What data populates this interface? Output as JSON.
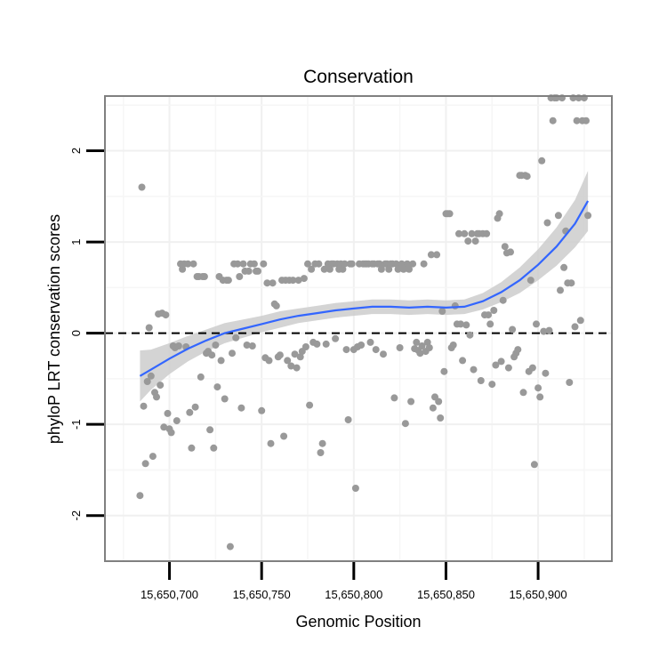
{
  "chart_data": {
    "type": "scatter",
    "title": "Conservation",
    "xlabel": "Genomic Position",
    "ylabel": "phyloP LRT conservation scores",
    "xlim": [
      15650665,
      15650940
    ],
    "ylim": [
      -2.5,
      2.6
    ],
    "xticks": [
      15650700,
      15650750,
      15650800,
      15650850,
      15650900
    ],
    "xtick_labels": [
      "15,650,700",
      "15,650,750",
      "15,650,800",
      "15,650,850",
      "15,650,900"
    ],
    "yticks": [
      -2,
      -1,
      0,
      1,
      2
    ],
    "ytick_labels": [
      "-2",
      "-1",
      "0",
      "1",
      "2"
    ],
    "reference_line": {
      "y": 0,
      "style": "dashed",
      "color": "#000000"
    },
    "point_color": "#999999",
    "smooth_color": "#3366ff",
    "band_color": "#cccccc",
    "points": [
      [
        15650684,
        -1.78
      ],
      [
        15650685,
        1.6
      ],
      [
        15650686,
        -0.8
      ],
      [
        15650687,
        -1.43
      ],
      [
        15650688,
        -0.53
      ],
      [
        15650689,
        0.06
      ],
      [
        15650690,
        -0.47
      ],
      [
        15650691,
        -1.35
      ],
      [
        15650692,
        -0.65
      ],
      [
        15650693,
        -0.7
      ],
      [
        15650694,
        0.21
      ],
      [
        15650695,
        -0.57
      ],
      [
        15650696,
        0.22
      ],
      [
        15650697,
        -1.03
      ],
      [
        15650698,
        0.2
      ],
      [
        15650699,
        -0.88
      ],
      [
        15650700,
        -1.05
      ],
      [
        15650701,
        -1.09
      ],
      [
        15650702,
        -0.14
      ],
      [
        15650703,
        -0.16
      ],
      [
        15650704,
        -0.96
      ],
      [
        15650705,
        -0.14
      ],
      [
        15650706,
        0.76
      ],
      [
        15650707,
        0.7
      ],
      [
        15650708,
        0.76
      ],
      [
        15650709,
        -0.15
      ],
      [
        15650710,
        0.76
      ],
      [
        15650711,
        -0.87
      ],
      [
        15650712,
        -1.26
      ],
      [
        15650713,
        0.76
      ],
      [
        15650714,
        -0.81
      ],
      [
        15650715,
        0.62
      ],
      [
        15650716,
        0.62
      ],
      [
        15650717,
        -0.48
      ],
      [
        15650718,
        0.62
      ],
      [
        15650719,
        0.62
      ],
      [
        15650720,
        -0.22
      ],
      [
        15650721,
        -0.2
      ],
      [
        15650722,
        -1.06
      ],
      [
        15650723,
        -0.24
      ],
      [
        15650724,
        -1.26
      ],
      [
        15650725,
        -0.13
      ],
      [
        15650726,
        -0.59
      ],
      [
        15650727,
        0.62
      ],
      [
        15650728,
        -0.3
      ],
      [
        15650729,
        0.58
      ],
      [
        15650730,
        -0.72
      ],
      [
        15650731,
        0.58
      ],
      [
        15650732,
        0.58
      ],
      [
        15650733,
        -2.34
      ],
      [
        15650734,
        -0.22
      ],
      [
        15650735,
        0.76
      ],
      [
        15650736,
        -0.05
      ],
      [
        15650737,
        0.76
      ],
      [
        15650738,
        0.62
      ],
      [
        15650739,
        -0.82
      ],
      [
        15650740,
        0.76
      ],
      [
        15650741,
        0.68
      ],
      [
        15650742,
        -0.13
      ],
      [
        15650743,
        0.68
      ],
      [
        15650744,
        0.76
      ],
      [
        15650745,
        -0.14
      ],
      [
        15650746,
        0.76
      ],
      [
        15650747,
        0.68
      ],
      [
        15650748,
        0.68
      ],
      [
        15650750,
        -0.85
      ],
      [
        15650751,
        0.76
      ],
      [
        15650752,
        -0.27
      ],
      [
        15650753,
        0.55
      ],
      [
        15650754,
        -0.3
      ],
      [
        15650755,
        -1.21
      ],
      [
        15650756,
        0.55
      ],
      [
        15650757,
        0.32
      ],
      [
        15650758,
        0.3
      ],
      [
        15650759,
        -0.26
      ],
      [
        15650760,
        -0.24
      ],
      [
        15650761,
        0.58
      ],
      [
        15650762,
        -1.13
      ],
      [
        15650763,
        0.58
      ],
      [
        15650764,
        -0.3
      ],
      [
        15650765,
        0.58
      ],
      [
        15650766,
        -0.36
      ],
      [
        15650767,
        0.58
      ],
      [
        15650768,
        -0.23
      ],
      [
        15650769,
        -0.38
      ],
      [
        15650770,
        0.58
      ],
      [
        15650771,
        -0.26
      ],
      [
        15650772,
        -0.2
      ],
      [
        15650773,
        0.6
      ],
      [
        15650774,
        -0.15
      ],
      [
        15650775,
        0.76
      ],
      [
        15650776,
        -0.79
      ],
      [
        15650777,
        0.7
      ],
      [
        15650778,
        -0.1
      ],
      [
        15650779,
        0.76
      ],
      [
        15650780,
        -0.12
      ],
      [
        15650781,
        0.76
      ],
      [
        15650782,
        -1.31
      ],
      [
        15650783,
        -1.21
      ],
      [
        15650784,
        0.7
      ],
      [
        15650785,
        -0.12
      ],
      [
        15650786,
        0.76
      ],
      [
        15650787,
        0.7
      ],
      [
        15650788,
        0.76
      ],
      [
        15650789,
        0.76
      ],
      [
        15650790,
        -0.06
      ],
      [
        15650791,
        0.76
      ],
      [
        15650792,
        0.7
      ],
      [
        15650793,
        0.76
      ],
      [
        15650794,
        0.7
      ],
      [
        15650795,
        0.76
      ],
      [
        15650796,
        -0.18
      ],
      [
        15650797,
        -0.95
      ],
      [
        15650798,
        0.76
      ],
      [
        15650799,
        0.76
      ],
      [
        15650800,
        -0.18
      ],
      [
        15650801,
        -1.7
      ],
      [
        15650802,
        -0.15
      ],
      [
        15650803,
        0.76
      ],
      [
        15650804,
        -0.13
      ],
      [
        15650805,
        0.76
      ],
      [
        15650806,
        0.76
      ],
      [
        15650807,
        0.76
      ],
      [
        15650808,
        0.76
      ],
      [
        15650809,
        -0.1
      ],
      [
        15650810,
        0.76
      ],
      [
        15650811,
        0.76
      ],
      [
        15650812,
        -0.18
      ],
      [
        15650813,
        0.76
      ],
      [
        15650814,
        0.76
      ],
      [
        15650815,
        0.7
      ],
      [
        15650816,
        -0.23
      ],
      [
        15650817,
        0.76
      ],
      [
        15650818,
        0.76
      ],
      [
        15650819,
        0.7
      ],
      [
        15650820,
        0.76
      ],
      [
        15650821,
        0.76
      ],
      [
        15650822,
        -0.71
      ],
      [
        15650823,
        0.76
      ],
      [
        15650824,
        0.7
      ],
      [
        15650825,
        -0.16
      ],
      [
        15650826,
        0.76
      ],
      [
        15650827,
        0.7
      ],
      [
        15650828,
        -0.99
      ],
      [
        15650829,
        0.76
      ],
      [
        15650830,
        0.7
      ],
      [
        15650831,
        -0.75
      ],
      [
        15650832,
        0.76
      ],
      [
        15650833,
        -0.17
      ],
      [
        15650834,
        -0.1
      ],
      [
        15650835,
        -0.19
      ],
      [
        15650836,
        -0.22
      ],
      [
        15650837,
        -0.14
      ],
      [
        15650838,
        0.76
      ],
      [
        15650839,
        -0.2
      ],
      [
        15650840,
        -0.1
      ],
      [
        15650841,
        -0.16
      ],
      [
        15650842,
        0.86
      ],
      [
        15650843,
        -0.82
      ],
      [
        15650844,
        -0.7
      ],
      [
        15650845,
        0.86
      ],
      [
        15650846,
        -0.75
      ],
      [
        15650847,
        -0.93
      ],
      [
        15650848,
        0.24
      ],
      [
        15650849,
        -0.42
      ],
      [
        15650850,
        1.31
      ],
      [
        15650851,
        1.31
      ],
      [
        15650852,
        1.31
      ],
      [
        15650853,
        -0.16
      ],
      [
        15650854,
        -0.13
      ],
      [
        15650855,
        0.3
      ],
      [
        15650856,
        0.1
      ],
      [
        15650857,
        1.09
      ],
      [
        15650858,
        0.1
      ],
      [
        15650859,
        -0.3
      ],
      [
        15650860,
        1.09
      ],
      [
        15650861,
        0.09
      ],
      [
        15650862,
        1.01
      ],
      [
        15650863,
        -0.02
      ],
      [
        15650864,
        1.09
      ],
      [
        15650865,
        -0.4
      ],
      [
        15650866,
        1.01
      ],
      [
        15650867,
        1.09
      ],
      [
        15650868,
        1.09
      ],
      [
        15650869,
        -0.52
      ],
      [
        15650870,
        1.09
      ],
      [
        15650871,
        0.2
      ],
      [
        15650872,
        1.09
      ],
      [
        15650873,
        0.2
      ],
      [
        15650874,
        0.1
      ],
      [
        15650875,
        -0.56
      ],
      [
        15650876,
        0.25
      ],
      [
        15650877,
        -0.35
      ],
      [
        15650878,
        1.26
      ],
      [
        15650879,
        1.31
      ],
      [
        15650880,
        -0.31
      ],
      [
        15650881,
        0.36
      ],
      [
        15650882,
        0.95
      ],
      [
        15650883,
        0.88
      ],
      [
        15650884,
        -0.38
      ],
      [
        15650885,
        0.89
      ],
      [
        15650886,
        0.04
      ],
      [
        15650887,
        -0.26
      ],
      [
        15650888,
        -0.22
      ],
      [
        15650889,
        -0.18
      ],
      [
        15650890,
        1.73
      ],
      [
        15650891,
        1.73
      ],
      [
        15650892,
        -0.65
      ],
      [
        15650893,
        1.73
      ],
      [
        15650894,
        1.72
      ],
      [
        15650895,
        -0.42
      ],
      [
        15650896,
        0.58
      ],
      [
        15650897,
        -0.38
      ],
      [
        15650898,
        -1.44
      ],
      [
        15650899,
        0.1
      ],
      [
        15650900,
        -0.6
      ],
      [
        15650901,
        -0.7
      ],
      [
        15650902,
        1.89
      ],
      [
        15650903,
        0.02
      ],
      [
        15650904,
        -0.44
      ],
      [
        15650905,
        1.21
      ],
      [
        15650906,
        0.03
      ],
      [
        15650907,
        2.58
      ],
      [
        15650908,
        2.33
      ],
      [
        15650909,
        2.58
      ],
      [
        15650910,
        2.58
      ],
      [
        15650911,
        1.29
      ],
      [
        15650912,
        0.47
      ],
      [
        15650913,
        2.58
      ],
      [
        15650914,
        0.72
      ],
      [
        15650915,
        1.12
      ],
      [
        15650916,
        0.55
      ],
      [
        15650917,
        -0.54
      ],
      [
        15650918,
        0.55
      ],
      [
        15650919,
        2.58
      ],
      [
        15650920,
        0.07
      ],
      [
        15650921,
        2.33
      ],
      [
        15650922,
        2.58
      ],
      [
        15650923,
        0.14
      ],
      [
        15650924,
        2.33
      ],
      [
        15650925,
        2.58
      ],
      [
        15650926,
        2.33
      ],
      [
        15650927,
        1.29
      ]
    ],
    "smooth": {
      "x": [
        15650684,
        15650690,
        15650700,
        15650710,
        15650720,
        15650730,
        15650740,
        15650750,
        15650760,
        15650770,
        15650780,
        15650790,
        15650800,
        15650810,
        15650820,
        15650830,
        15650840,
        15650850,
        15650860,
        15650870,
        15650880,
        15650890,
        15650900,
        15650910,
        15650920,
        15650927
      ],
      "y": [
        -0.47,
        -0.4,
        -0.28,
        -0.17,
        -0.08,
        0.0,
        0.05,
        0.1,
        0.15,
        0.19,
        0.22,
        0.25,
        0.27,
        0.29,
        0.29,
        0.28,
        0.29,
        0.28,
        0.29,
        0.35,
        0.45,
        0.58,
        0.75,
        0.95,
        1.2,
        1.45
      ],
      "lower": [
        -0.75,
        -0.62,
        -0.45,
        -0.31,
        -0.2,
        -0.11,
        -0.05,
        0.01,
        0.06,
        0.11,
        0.14,
        0.17,
        0.19,
        0.21,
        0.21,
        0.2,
        0.21,
        0.2,
        0.21,
        0.26,
        0.34,
        0.44,
        0.58,
        0.74,
        0.94,
        1.12
      ],
      "upper": [
        -0.19,
        -0.18,
        -0.11,
        -0.03,
        0.04,
        0.11,
        0.15,
        0.19,
        0.24,
        0.27,
        0.3,
        0.33,
        0.35,
        0.37,
        0.37,
        0.36,
        0.37,
        0.36,
        0.37,
        0.44,
        0.56,
        0.72,
        0.92,
        1.16,
        1.46,
        1.78
      ]
    }
  }
}
